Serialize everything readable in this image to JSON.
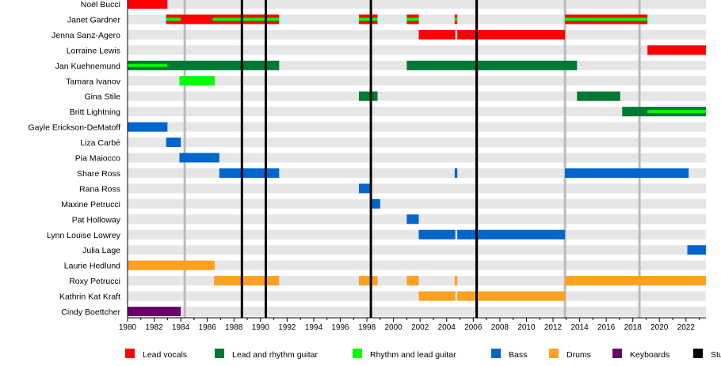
{
  "chart_data": {
    "type": "timeline",
    "xlim": [
      1980,
      2023.5
    ],
    "x_ticks": [
      1980,
      1982,
      1984,
      1986,
      1988,
      1990,
      1992,
      1994,
      1996,
      1998,
      2000,
      2002,
      2004,
      2006,
      2008,
      2010,
      2012,
      2014,
      2016,
      2018,
      2020,
      2022
    ],
    "colors": {
      "Lead vocals": "#ff0000",
      "Lead and rhythm guitar": "#007a33",
      "Rhythm and lead guitar": "#00ff00",
      "Bass": "#0066cc",
      "Drums": "#ffa020",
      "Keyboards": "#6a006a",
      "Studio albums": "#000000"
    },
    "legend": [
      "Lead vocals",
      "Lead and rhythm guitar",
      "Rhythm and lead guitar",
      "Bass",
      "Drums",
      "Keyboards",
      "Studio albums"
    ],
    "studio_albums": [
      1988.6,
      1990.4,
      1998.3,
      2006.25
    ],
    "other_releases": [
      1984.3,
      2006.3,
      2012.9,
      2018.5
    ],
    "members": [
      {
        "name": "Noël Bucci",
        "bars": [
          {
            "role": "Lead vocals",
            "start": 1980,
            "end": 1983.0
          }
        ]
      },
      {
        "name": "Janet Gardner",
        "bars": [
          {
            "role": "Lead vocals",
            "start": 1982.9,
            "end": 1991.4
          },
          {
            "role": "Rhythm and lead guitar",
            "start": 1982.9,
            "end": 1984.0,
            "secondary": true
          },
          {
            "role": "Rhythm and lead guitar",
            "start": 1986.4,
            "end": 1991.4,
            "secondary": true
          },
          {
            "role": "Lead vocals",
            "start": 1997.4,
            "end": 1998.8
          },
          {
            "role": "Rhythm and lead guitar",
            "start": 1997.4,
            "end": 1998.8,
            "secondary": true
          },
          {
            "role": "Lead vocals",
            "start": 2001.0,
            "end": 2001.9
          },
          {
            "role": "Rhythm and lead guitar",
            "start": 2001.0,
            "end": 2001.9,
            "secondary": true
          },
          {
            "role": "Lead vocals",
            "start": 2004.6,
            "end": 2004.8
          },
          {
            "role": "Rhythm and lead guitar",
            "start": 2004.6,
            "end": 2004.8,
            "secondary": true
          },
          {
            "role": "Lead vocals",
            "start": 2012.9,
            "end": 2019.1
          },
          {
            "role": "Rhythm and lead guitar",
            "start": 2012.9,
            "end": 2019.1,
            "secondary": true
          }
        ]
      },
      {
        "name": "Jenna Sanz-Agero",
        "bars": [
          {
            "role": "Lead vocals",
            "start": 2001.9,
            "end": 2004.65
          },
          {
            "role": "Lead vocals",
            "start": 2004.8,
            "end": 2012.9
          }
        ]
      },
      {
        "name": "Lorraine Lewis",
        "bars": [
          {
            "role": "Lead vocals",
            "start": 2019.1,
            "end": 2023.5
          }
        ]
      },
      {
        "name": "Jan Kuehnemund",
        "bars": [
          {
            "role": "Lead and rhythm guitar",
            "start": 1980,
            "end": 1991.4
          },
          {
            "role": "Rhythm and lead guitar",
            "start": 1980,
            "end": 1983.0,
            "secondary": true
          },
          {
            "role": "Lead and rhythm guitar",
            "start": 2001.0,
            "end": 2013.8
          }
        ]
      },
      {
        "name": "Tamara Ivanov",
        "bars": [
          {
            "role": "Rhythm and lead guitar",
            "start": 1983.9,
            "end": 1986.55
          }
        ]
      },
      {
        "name": "Gina Stile",
        "bars": [
          {
            "role": "Lead and rhythm guitar",
            "start": 1997.4,
            "end": 1998.8
          },
          {
            "role": "Lead and rhythm guitar",
            "start": 2013.8,
            "end": 2017.05
          }
        ]
      },
      {
        "name": "Britt Lightning",
        "bars": [
          {
            "role": "Lead and rhythm guitar",
            "start": 2017.2,
            "end": 2023.5
          },
          {
            "role": "Rhythm and lead guitar",
            "start": 2019.1,
            "end": 2023.5,
            "secondary": true
          }
        ]
      },
      {
        "name": "Gayle Erickson-DeMatoff",
        "bars": [
          {
            "role": "Bass",
            "start": 1980,
            "end": 1983.0
          }
        ]
      },
      {
        "name": "Liza Carbé",
        "bars": [
          {
            "role": "Bass",
            "start": 1982.9,
            "end": 1984.0
          }
        ]
      },
      {
        "name": "Pia Maiocco",
        "bars": [
          {
            "role": "Bass",
            "start": 1983.9,
            "end": 1986.9
          }
        ]
      },
      {
        "name": "Share Ross",
        "bars": [
          {
            "role": "Bass",
            "start": 1986.9,
            "end": 1991.4
          },
          {
            "role": "Bass",
            "start": 2004.6,
            "end": 2004.8
          },
          {
            "role": "Bass",
            "start": 2012.9,
            "end": 2022.2
          }
        ]
      },
      {
        "name": "Rana Ross",
        "bars": [
          {
            "role": "Bass",
            "start": 1997.4,
            "end": 1998.3
          }
        ]
      },
      {
        "name": "Maxine Petrucci",
        "bars": [
          {
            "role": "Bass",
            "start": 1998.35,
            "end": 1999.0
          }
        ]
      },
      {
        "name": "Pat Holloway",
        "bars": [
          {
            "role": "Bass",
            "start": 2001.0,
            "end": 2001.9
          }
        ]
      },
      {
        "name": "Lynn Louise Lowrey",
        "bars": [
          {
            "role": "Bass",
            "start": 2001.9,
            "end": 2004.65
          },
          {
            "role": "Bass",
            "start": 2004.8,
            "end": 2012.9
          }
        ]
      },
      {
        "name": "Julia Lage",
        "bars": [
          {
            "role": "Bass",
            "start": 2022.1,
            "end": 2023.5
          }
        ]
      },
      {
        "name": "Laurie Hedlund",
        "bars": [
          {
            "role": "Drums",
            "start": 1980,
            "end": 1986.55
          }
        ]
      },
      {
        "name": "Roxy Petrucci",
        "bars": [
          {
            "role": "Drums",
            "start": 1986.5,
            "end": 1991.4
          },
          {
            "role": "Drums",
            "start": 1997.4,
            "end": 1998.8
          },
          {
            "role": "Drums",
            "start": 2001.0,
            "end": 2001.9
          },
          {
            "role": "Drums",
            "start": 2004.6,
            "end": 2004.8
          },
          {
            "role": "Drums",
            "start": 2012.9,
            "end": 2023.5
          }
        ]
      },
      {
        "name": "Kathrin Kat Kraft",
        "bars": [
          {
            "role": "Drums",
            "start": 2001.9,
            "end": 2004.65
          },
          {
            "role": "Drums",
            "start": 2004.8,
            "end": 2012.9
          }
        ]
      },
      {
        "name": "Cindy Boettcher",
        "bars": [
          {
            "role": "Keyboards",
            "start": 1980,
            "end": 1984.0
          }
        ]
      }
    ]
  }
}
